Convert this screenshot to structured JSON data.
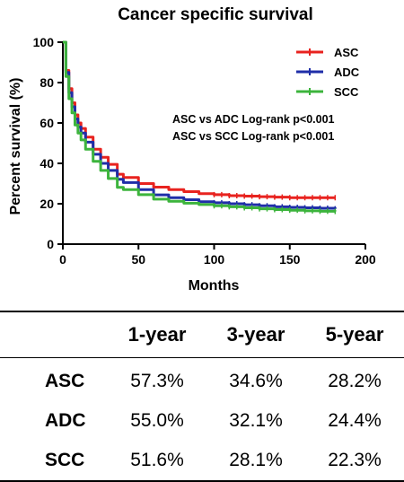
{
  "chart_data": {
    "type": "line",
    "title": "Cancer specific survival",
    "xlabel": "Months",
    "ylabel": "Percent survival (%)",
    "xlim": [
      0,
      200
    ],
    "ylim": [
      0,
      100
    ],
    "xticks": [
      0,
      50,
      100,
      150,
      200
    ],
    "yticks": [
      0,
      20,
      40,
      60,
      80,
      100
    ],
    "legend_position": "top-right",
    "annotations": [
      "ASC vs ADC Log-rank p<0.001",
      "ASC vs SCC Log-rank p<0.001"
    ],
    "series": [
      {
        "name": "ASC",
        "color": "#e8231f",
        "x": [
          0,
          2,
          4,
          6,
          8,
          10,
          12,
          15,
          20,
          25,
          30,
          36,
          40,
          50,
          60,
          70,
          80,
          90,
          100,
          110,
          120,
          130,
          140,
          150,
          160,
          170,
          180
        ],
        "y": [
          100,
          86,
          77,
          70,
          64,
          60,
          57.3,
          53,
          47,
          43,
          39.5,
          34.6,
          33,
          30,
          28.2,
          27,
          26,
          25,
          24.5,
          24,
          23.8,
          23.5,
          23.3,
          23,
          23,
          23,
          23
        ]
      },
      {
        "name": "ADC",
        "color": "#1f2ea8",
        "x": [
          0,
          2,
          4,
          6,
          8,
          10,
          12,
          15,
          20,
          25,
          30,
          36,
          40,
          50,
          60,
          70,
          80,
          90,
          100,
          110,
          120,
          130,
          140,
          150,
          160,
          170,
          180
        ],
        "y": [
          100,
          85,
          75,
          68,
          62,
          58,
          55,
          50.5,
          44.5,
          40,
          36.5,
          32.1,
          30.5,
          27,
          24.4,
          23,
          22,
          21,
          20.5,
          20,
          19.5,
          19,
          18.5,
          18.2,
          18,
          17.8,
          17.5
        ]
      },
      {
        "name": "SCC",
        "color": "#3cb43c",
        "x": [
          0,
          2,
          4,
          6,
          8,
          10,
          12,
          15,
          20,
          25,
          30,
          36,
          40,
          50,
          60,
          70,
          80,
          90,
          100,
          110,
          120,
          130,
          140,
          150,
          160,
          170,
          180
        ],
        "y": [
          100,
          83,
          72,
          65,
          59,
          55,
          51.6,
          47,
          41,
          36.5,
          32.5,
          28.1,
          27,
          24.5,
          22.3,
          21.2,
          20.3,
          19.6,
          19,
          18.5,
          18,
          17.5,
          17.1,
          16.8,
          16.5,
          16.3,
          16.2
        ]
      }
    ]
  },
  "table": {
    "headers": [
      "",
      "1-year",
      "3-year",
      "5-year"
    ],
    "rows": [
      {
        "label": "ASC",
        "values": [
          "57.3%",
          "34.6%",
          "28.2%"
        ]
      },
      {
        "label": "ADC",
        "values": [
          "55.0%",
          "32.1%",
          "24.4%"
        ]
      },
      {
        "label": "SCC",
        "values": [
          "51.6%",
          "28.1%",
          "22.3%"
        ]
      }
    ]
  }
}
